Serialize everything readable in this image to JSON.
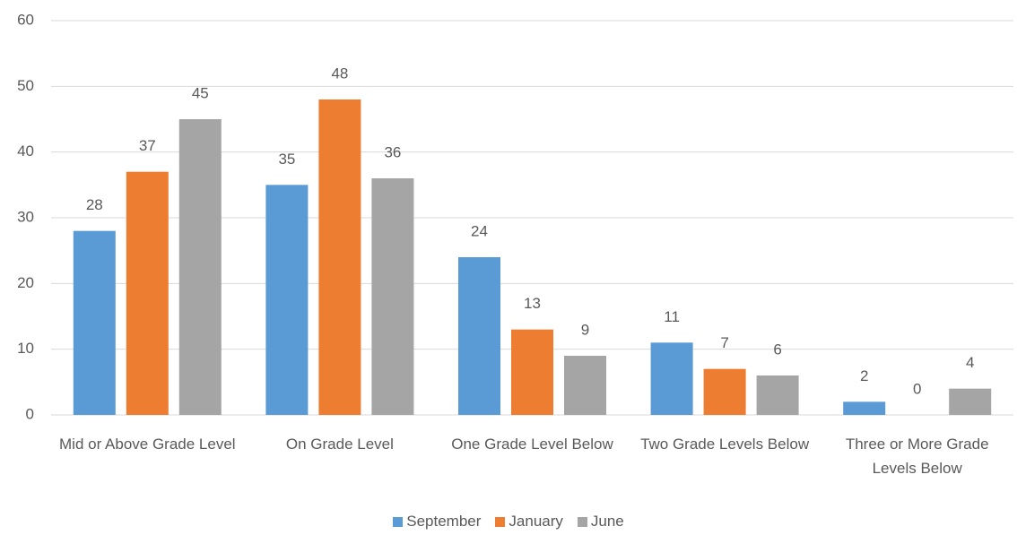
{
  "chart_data": {
    "type": "bar",
    "categories": [
      "Mid or Above Grade Level",
      "On Grade Level",
      "One Grade Level Below",
      "Two Grade Levels Below",
      "Three or More Grade Levels Below"
    ],
    "series": [
      {
        "name": "September",
        "color": "#5b9bd5",
        "values": [
          28,
          35,
          24,
          11,
          2
        ]
      },
      {
        "name": "January",
        "color": "#ed7d31",
        "values": [
          37,
          48,
          13,
          7,
          0
        ]
      },
      {
        "name": "June",
        "color": "#a5a5a5",
        "values": [
          45,
          36,
          9,
          6,
          4
        ]
      }
    ],
    "ylim": [
      0,
      60
    ],
    "yticks": [
      0,
      10,
      20,
      30,
      40,
      50,
      60
    ],
    "grid": true,
    "legend": "bottom"
  }
}
